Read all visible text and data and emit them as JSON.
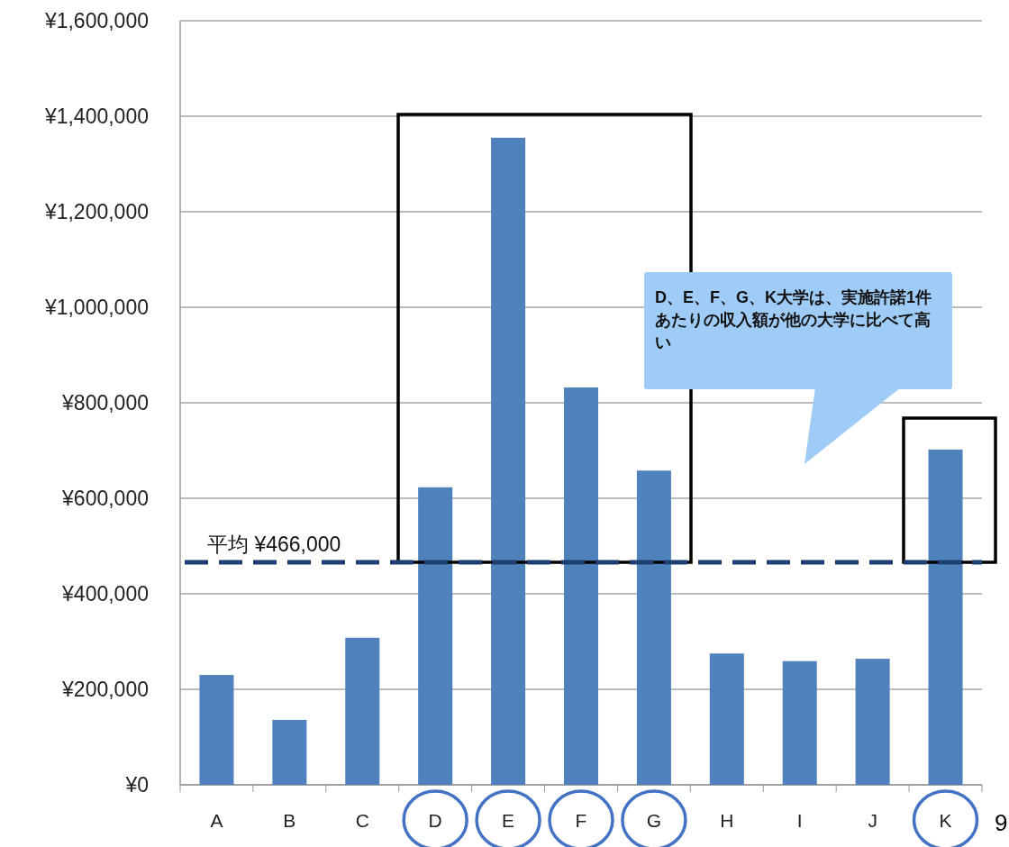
{
  "chart_data": {
    "type": "bar",
    "categories": [
      "A",
      "B",
      "C",
      "D",
      "E",
      "F",
      "G",
      "H",
      "I",
      "J",
      "K"
    ],
    "values": [
      230000,
      136000,
      308000,
      623000,
      1355000,
      832000,
      658000,
      275000,
      259000,
      264000,
      702000
    ],
    "color": "#4f81bd",
    "ylim": [
      0,
      1600000
    ],
    "yticks": [
      {
        "value": 0,
        "label": "¥0"
      },
      {
        "value": 200000,
        "label": "¥200,000"
      },
      {
        "value": 400000,
        "label": "¥400,000"
      },
      {
        "value": 600000,
        "label": "¥600,000"
      },
      {
        "value": 800000,
        "label": "¥800,000"
      },
      {
        "value": 1000000,
        "label": "¥1,000,000"
      },
      {
        "value": 1200000,
        "label": "¥1,200,000"
      },
      {
        "value": 1400000,
        "label": "¥1,400,000"
      },
      {
        "value": 1600000,
        "label": "¥1,600,000"
      }
    ],
    "grid": "y",
    "ref_lines": [
      {
        "axis": "y",
        "value": 466000,
        "label": "平均 ¥466,000",
        "color": "#1f3f73",
        "line_style": "dashed"
      }
    ],
    "annotations": [
      "D、E、F、G、K大学は、実施許諾1件あたりの収入額が他の大学に比べて高い",
      "9"
    ]
  }
}
